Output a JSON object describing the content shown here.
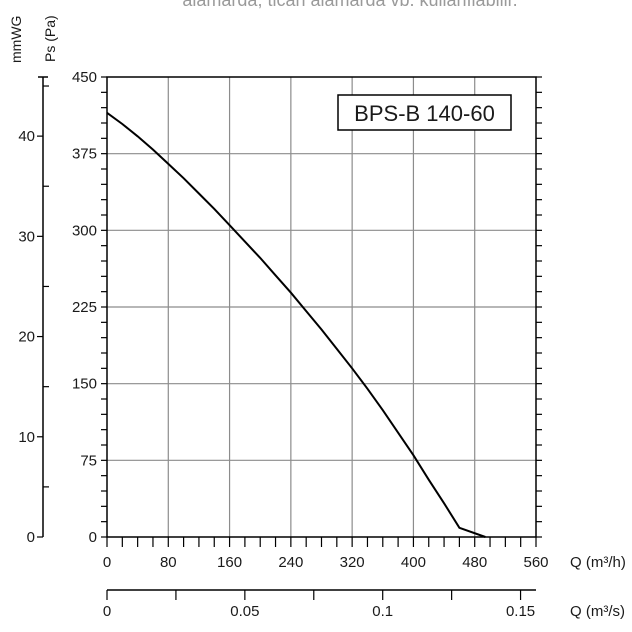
{
  "header": {
    "cut_text": "alamarda, tican alamarda vb. kullanılabilir."
  },
  "chart_data": {
    "type": "line",
    "title": "BPS-B 140-60",
    "series": [
      {
        "x": [
          0,
          20,
          40,
          60,
          80,
          100,
          120,
          140,
          160,
          180,
          200,
          220,
          240,
          260,
          280,
          300,
          320,
          340,
          360,
          380,
          400,
          420,
          440,
          460,
          480,
          494
        ],
        "y": [
          415,
          404,
          392,
          379,
          365,
          351,
          336,
          321,
          305,
          289,
          273,
          256,
          239,
          221,
          203,
          184,
          165,
          145,
          124,
          102,
          80,
          56,
          33,
          9,
          -16,
          0
        ]
      }
    ],
    "y_axis_left": {
      "label": "Ps (Pa)",
      "ticks": [
        "0",
        "75",
        "150",
        "225",
        "300",
        "375",
        "450"
      ],
      "range": [
        0,
        450
      ]
    },
    "y_axis_far_left": {
      "label": "mmWG",
      "ticks": [
        "0",
        "10",
        "20",
        "30",
        "40"
      ],
      "range": [
        0,
        45.9
      ]
    },
    "x_axis_bottom": {
      "label": "Q (m³/h)",
      "ticks": [
        "0",
        "80",
        "160",
        "240",
        "320",
        "400",
        "480",
        "560"
      ],
      "range": [
        0,
        560
      ]
    },
    "x_axis_secondary": {
      "label": "Q (m³/s)",
      "ticks": [
        "0",
        "0.05",
        "0.1",
        "0.15"
      ],
      "range": [
        0,
        0.1556
      ]
    },
    "grid": true,
    "legend": "none"
  }
}
